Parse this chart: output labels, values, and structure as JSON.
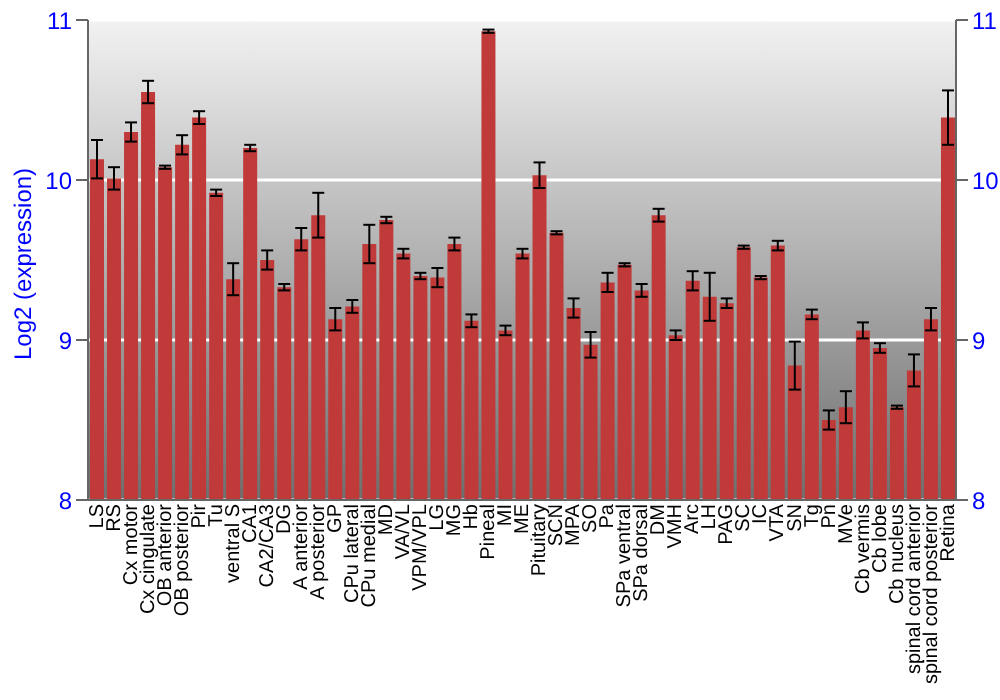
{
  "chart_data": {
    "type": "bar",
    "ylabel": "Log2 (expression)",
    "categories": [
      "LS",
      "RS",
      "Cx motor",
      "Cx cingulate",
      "OB anterior",
      "OB posterior",
      "Pir",
      "Tu",
      "ventral S",
      "CA1",
      "CA2/CA3",
      "DG",
      "A anterior",
      "A posterior",
      "GP",
      "CPu lateral",
      "CPu medial",
      "MD",
      "VA/VL",
      "VPM/VPL",
      "LG",
      "MG",
      "Hb",
      "Pineal",
      "MI",
      "ME",
      "Pituitary",
      "SCN",
      "MPA",
      "SO",
      "Pa",
      "SPa ventral",
      "SPa dorsal",
      "DM",
      "VMH",
      "Arc",
      "LH",
      "PAG",
      "SC",
      "IC",
      "VTA",
      "SN",
      "Tg",
      "Pn",
      "MVe",
      "Cb vermis",
      "Cb lobe",
      "Cb nucleus",
      "spinal cord anterior",
      "spinal cord posterior",
      "Retina"
    ],
    "values": [
      10.13,
      10.01,
      10.3,
      10.55,
      10.08,
      10.22,
      10.39,
      9.92,
      9.38,
      10.2,
      9.5,
      9.33,
      9.63,
      9.78,
      9.13,
      9.21,
      9.6,
      9.75,
      9.54,
      9.4,
      9.39,
      9.6,
      9.12,
      10.93,
      9.06,
      9.54,
      10.03,
      9.67,
      9.2,
      8.97,
      9.36,
      9.47,
      9.31,
      9.78,
      9.03,
      9.37,
      9.27,
      9.23,
      9.58,
      9.39,
      9.59,
      8.84,
      9.16,
      8.5,
      8.58,
      9.06,
      8.95,
      8.58,
      8.81,
      9.13,
      10.39
    ],
    "errors": [
      0.12,
      0.07,
      0.06,
      0.07,
      0.01,
      0.06,
      0.04,
      0.02,
      0.1,
      0.02,
      0.06,
      0.02,
      0.07,
      0.14,
      0.07,
      0.04,
      0.12,
      0.02,
      0.03,
      0.02,
      0.06,
      0.04,
      0.04,
      0.01,
      0.03,
      0.03,
      0.08,
      0.01,
      0.06,
      0.08,
      0.06,
      0.01,
      0.04,
      0.04,
      0.03,
      0.06,
      0.15,
      0.03,
      0.01,
      0.01,
      0.03,
      0.15,
      0.03,
      0.06,
      0.1,
      0.05,
      0.03,
      0.01,
      0.1,
      0.07,
      0.17
    ],
    "color": "#c03a3a",
    "ylim": [
      8,
      11
    ],
    "yticks": [
      8,
      9,
      10,
      11
    ],
    "y2lim": [
      8,
      11
    ],
    "y2ticks": [
      8,
      9,
      10,
      11
    ],
    "grid": "y"
  }
}
